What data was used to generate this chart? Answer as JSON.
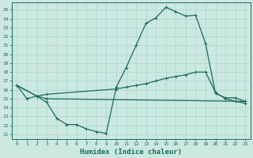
{
  "xlabel": "Humidex (Indice chaleur)",
  "bg_color": "#cce9e1",
  "grid_color": "#aad4cc",
  "line_color": "#1a6b5a",
  "xlim": [
    -0.5,
    23.5
  ],
  "ylim": [
    10.5,
    25.8
  ],
  "yticks": [
    11,
    12,
    13,
    14,
    15,
    16,
    17,
    18,
    19,
    20,
    21,
    22,
    23,
    24,
    25
  ],
  "xticks": [
    0,
    1,
    2,
    3,
    4,
    5,
    6,
    7,
    8,
    9,
    10,
    11,
    12,
    13,
    14,
    15,
    16,
    17,
    18,
    19,
    20,
    21,
    22,
    23
  ],
  "line1_x": [
    0,
    1,
    2,
    3,
    4,
    5,
    6,
    7,
    8,
    9,
    10,
    11,
    12,
    13,
    14,
    15,
    16,
    17,
    18,
    19,
    20,
    21,
    22,
    23
  ],
  "line1_y": [
    16.5,
    15.0,
    15.3,
    14.6,
    12.8,
    12.1,
    12.1,
    11.6,
    11.3,
    11.1,
    16.3,
    18.5,
    21.0,
    23.5,
    24.1,
    25.3,
    24.8,
    24.3,
    24.4,
    21.2,
    15.6,
    15.1,
    15.1,
    14.7
  ],
  "line2_x": [
    0,
    2,
    3,
    10,
    11,
    12,
    13,
    14,
    15,
    16,
    17,
    18,
    19,
    20,
    21,
    22,
    23
  ],
  "line2_y": [
    16.5,
    15.3,
    15.5,
    16.1,
    16.3,
    16.5,
    16.7,
    17.0,
    17.3,
    17.5,
    17.7,
    18.0,
    18.0,
    15.7,
    15.0,
    14.7,
    14.5
  ],
  "line3_x": [
    0,
    2,
    3,
    23
  ],
  "line3_y": [
    16.5,
    15.3,
    15.0,
    14.7
  ]
}
